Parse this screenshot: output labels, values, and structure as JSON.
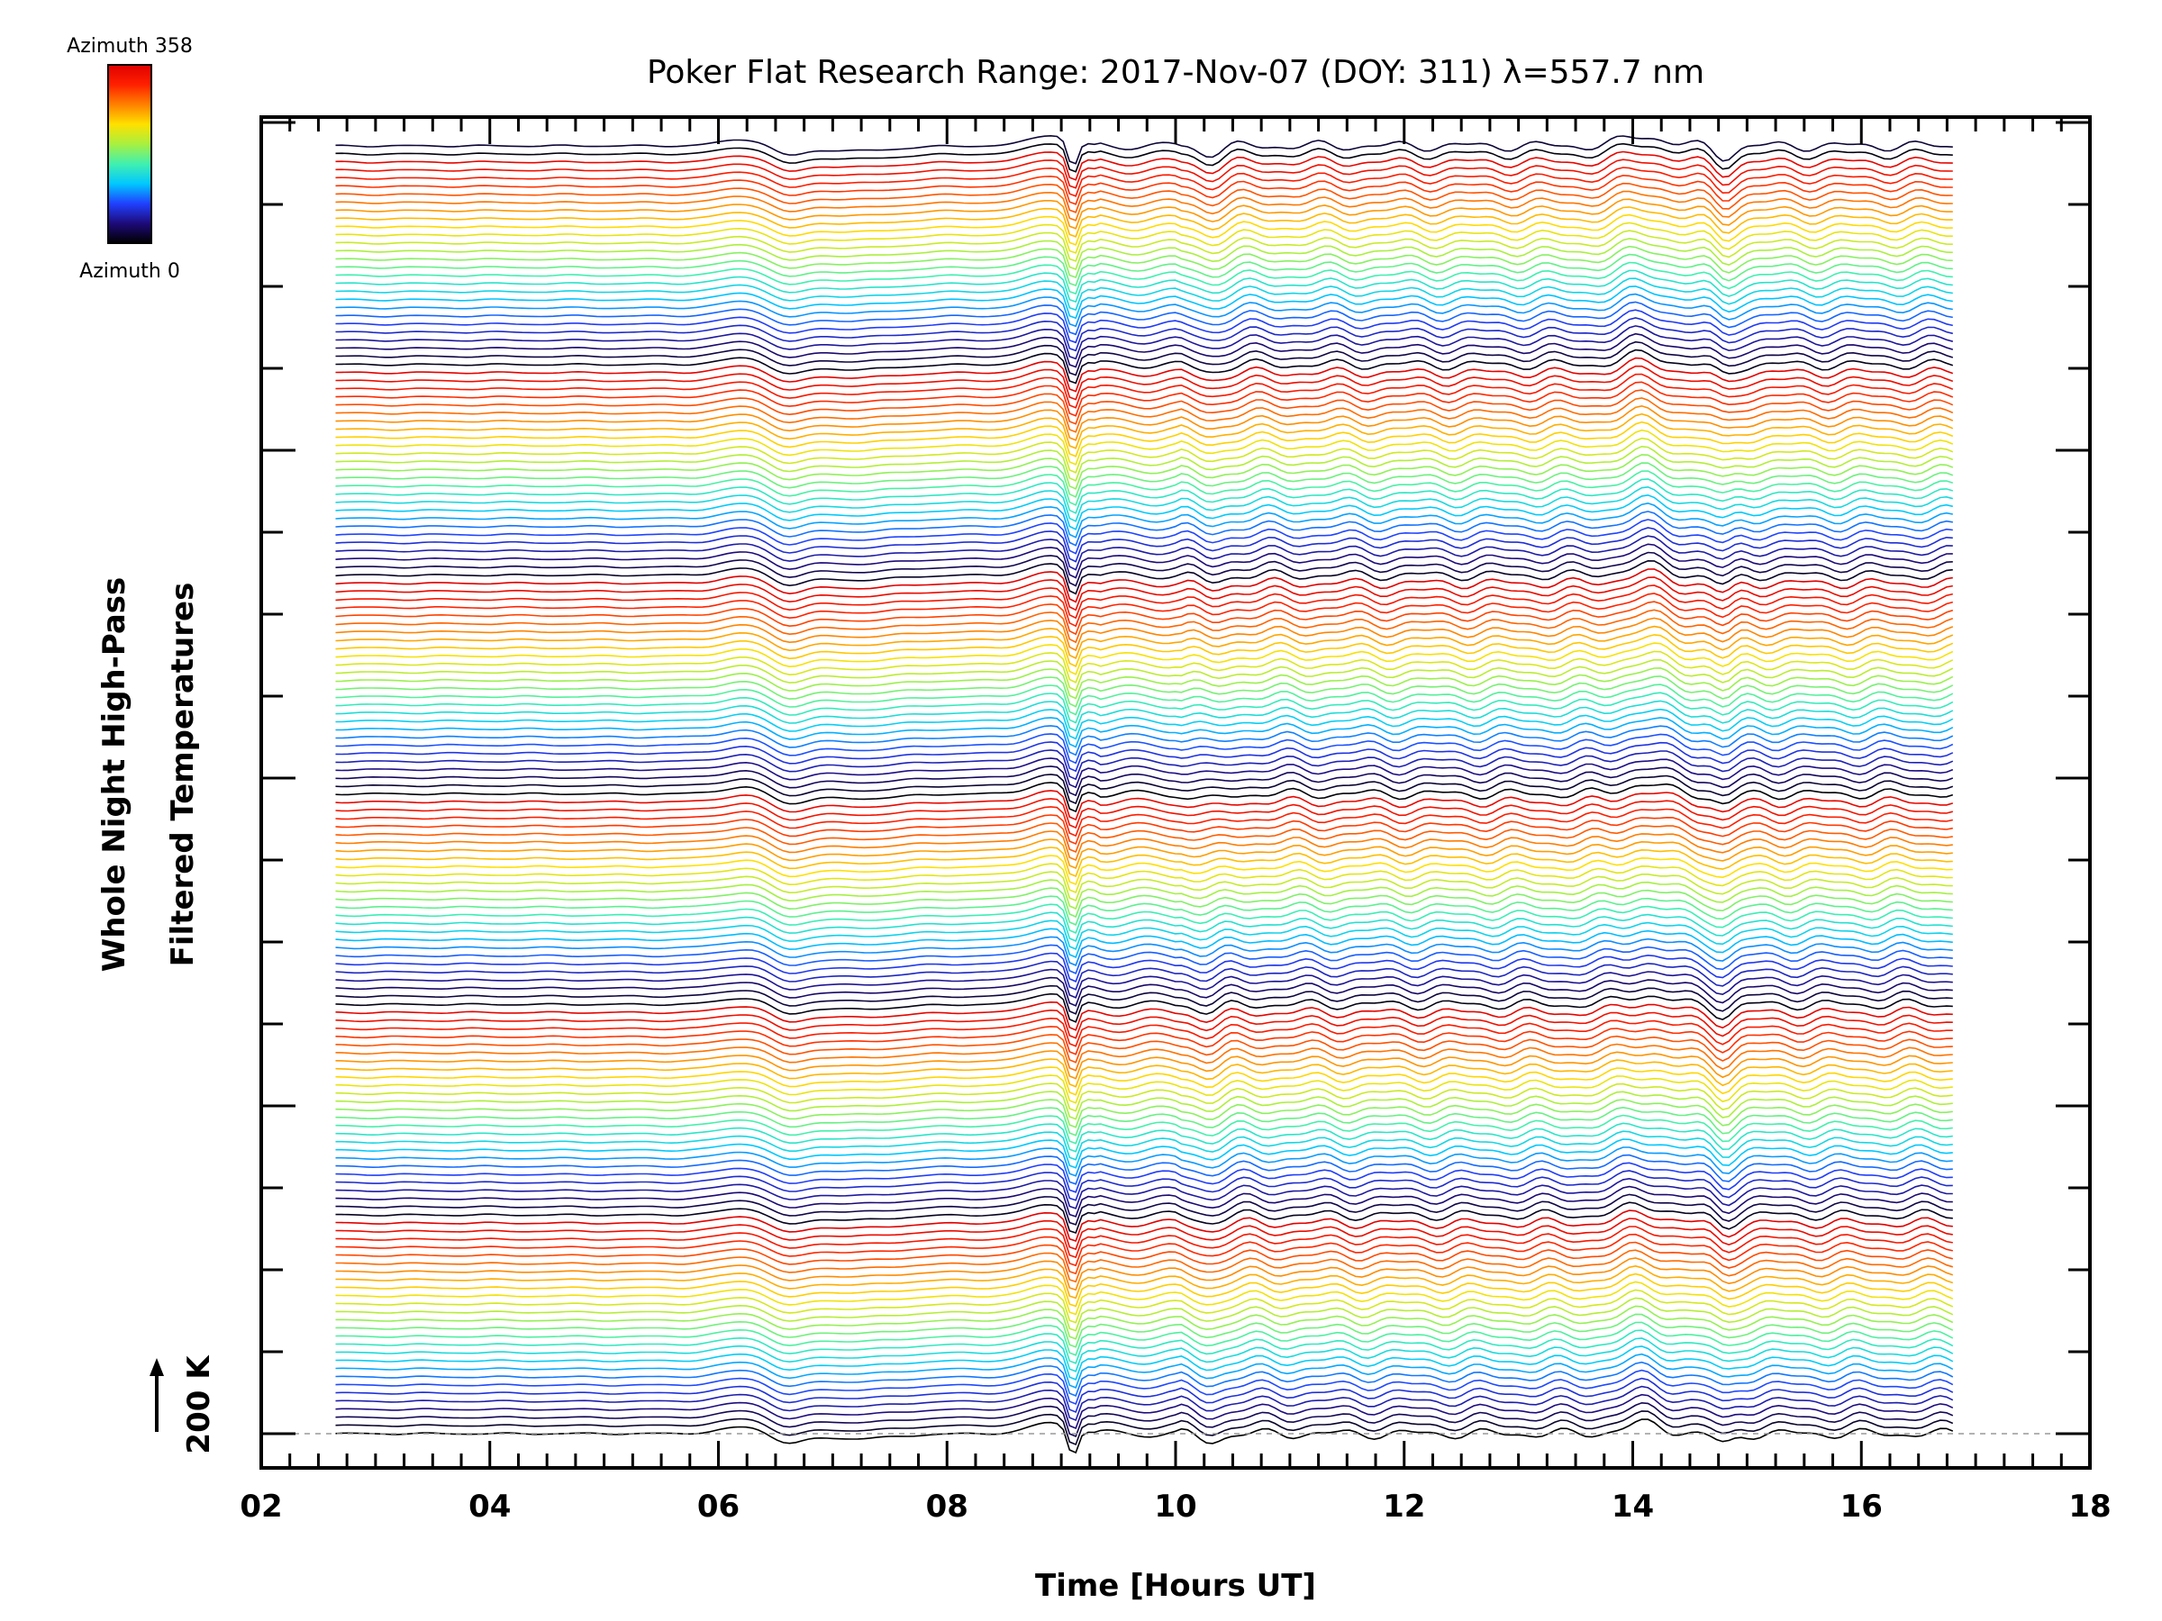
{
  "chart_data": {
    "type": "line",
    "title": "Poker Flat Research Range: 2017-Nov-07 (DOY: 311) λ=557.7 nm",
    "xlabel": "Time [Hours UT]",
    "ylabel_line1": "Whole Night High-Pass",
    "ylabel_line2": "Filtered Temperatures",
    "xlim": [
      2,
      18
    ],
    "x_ticks": [
      "02",
      "04",
      "06",
      "08",
      "10",
      "12",
      "14",
      "16",
      "18"
    ],
    "scale_bar_label": "200 K",
    "scale_bar_value_K": 200,
    "data_time_range": [
      2.65,
      16.8
    ],
    "series_count": 160,
    "azimuth_range": [
      0,
      358
    ],
    "colorbar": {
      "top_label": "Azimuth 358",
      "bottom_label": "Azimuth 0",
      "colors": [
        "#000000",
        "#1e0a7a",
        "#2040ff",
        "#00c8ff",
        "#40f0b0",
        "#a8f040",
        "#ffe000",
        "#ff8000",
        "#ff2000",
        "#e00000"
      ]
    },
    "features": [
      {
        "time": 9.1,
        "description": "sharp dip"
      },
      {
        "time": 6.5,
        "description": "dip"
      },
      {
        "time": 14.1,
        "description": "rise"
      },
      {
        "time": 14.8,
        "description": "dip"
      }
    ],
    "grid": false,
    "legend": "colorbar top-left"
  }
}
